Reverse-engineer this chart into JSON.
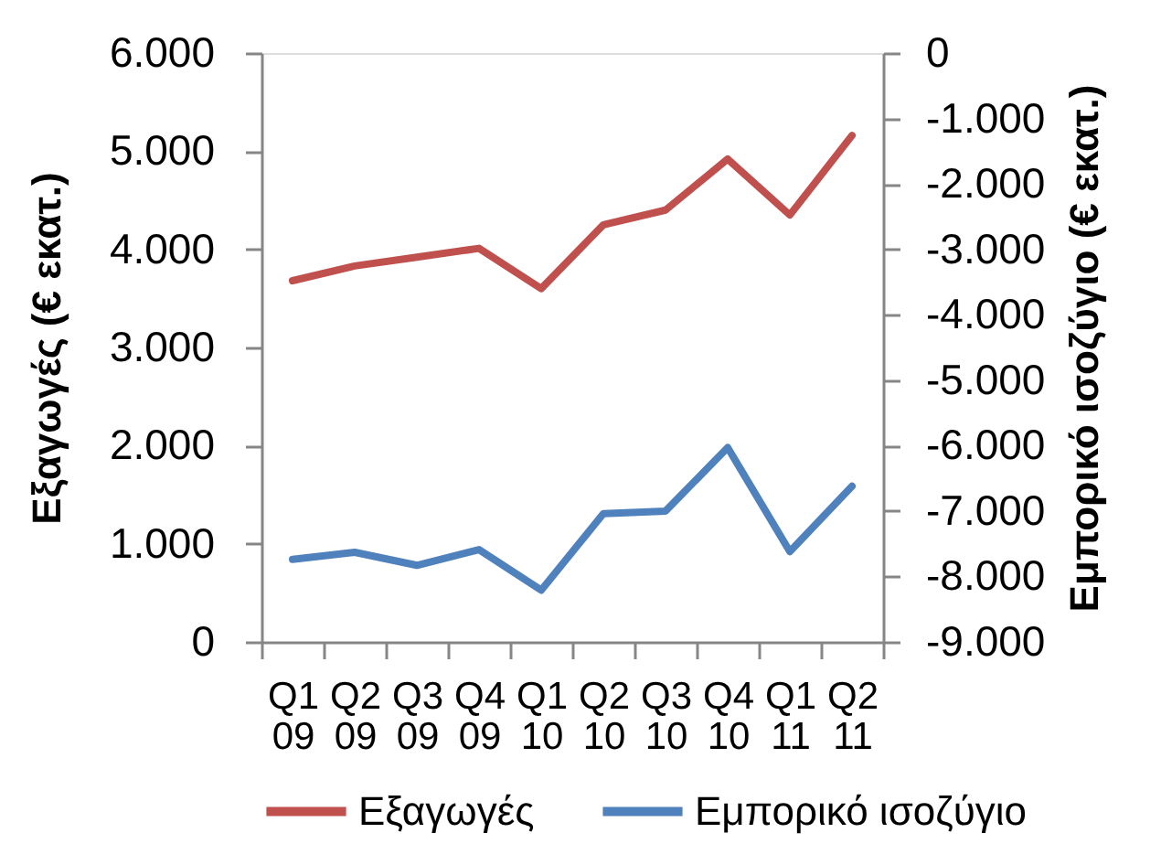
{
  "chart_data": {
    "type": "line",
    "categories": [
      "Q1 09",
      "Q2 09",
      "Q3 09",
      "Q4 09",
      "Q1 10",
      "Q2 10",
      "Q3 10",
      "Q4 10",
      "Q1 11",
      "Q2 11"
    ],
    "series": [
      {
        "name": "Εξαγωγές",
        "color": "#c0504d",
        "values": [
          3680,
          3830,
          3920,
          4010,
          3600,
          4250,
          4400,
          4920,
          4350,
          5160
        ]
      },
      {
        "name": "Εμπορικό ισοζύγιο",
        "color": "#4f81bd",
        "axis": "y2",
        "values": [
          -7740,
          -7630,
          -7830,
          -7590,
          -8210,
          -7040,
          -7000,
          -6030,
          -7620,
          -6620
        ]
      }
    ],
    "ylabel": "Εξαγωγές (€ εκατ.)",
    "y2label": "Εμπορικό ισοζύγιο (€ εκατ.)",
    "ylim": [
      0,
      6000
    ],
    "yticks": [
      0,
      {
        "value": 1000,
        "label": "1.000"
      },
      {
        "value": 2000,
        "label": "2.000"
      },
      {
        "value": 3000,
        "label": "3.000"
      },
      {
        "value": 4000,
        "label": "4.000"
      },
      {
        "value": 5000,
        "label": "5.000"
      },
      {
        "value": 6000,
        "label": "6.000"
      }
    ],
    "y2lim": [
      -9000,
      0
    ],
    "y2ticks": [
      {
        "value": -9000,
        "label": "-9.000"
      },
      {
        "value": -8000,
        "label": "-8.000"
      },
      {
        "value": -7000,
        "label": "-7.000"
      },
      {
        "value": -6000,
        "label": "-6.000"
      },
      {
        "value": -5000,
        "label": "-5.000"
      },
      {
        "value": -4000,
        "label": "-4.000"
      },
      {
        "value": -3000,
        "label": "-3.000"
      },
      {
        "value": -2000,
        "label": "-2.000"
      },
      {
        "value": -1000,
        "label": "-1.000"
      },
      0
    ],
    "legend": "bottom"
  }
}
